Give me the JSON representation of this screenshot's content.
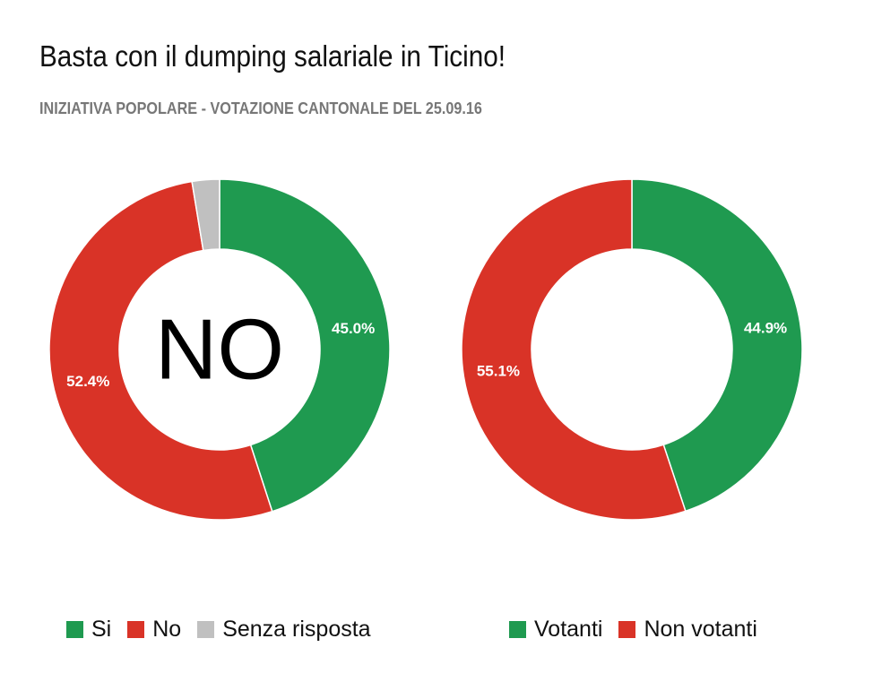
{
  "title": "Basta con il dumping salariale in Ticino!",
  "subtitle": "INIZIATIVA POPOLARE - VOTAZIONE CANTONALE DEL 25.09.16",
  "colors": {
    "si": "#1f9a50",
    "no": "#d93327",
    "senza": "#c0c0c0"
  },
  "chart_data": [
    {
      "type": "pie",
      "center_label": "NO",
      "series": [
        {
          "name": "Si",
          "value": 45.0,
          "label": "45.0%",
          "color": "#1f9a50"
        },
        {
          "name": "No",
          "value": 52.4,
          "label": "52.4%",
          "color": "#d93327"
        },
        {
          "name": "Senza risposta",
          "value": 2.6,
          "label": "",
          "color": "#c0c0c0"
        }
      ],
      "legend": [
        "Si",
        "No",
        "Senza risposta"
      ],
      "legend_position": "bottom"
    },
    {
      "type": "pie",
      "center_label": "",
      "series": [
        {
          "name": "Votanti",
          "value": 44.9,
          "label": "44.9%",
          "color": "#1f9a50"
        },
        {
          "name": "Non votanti",
          "value": 55.1,
          "label": "55.1%",
          "color": "#d93327"
        }
      ],
      "legend": [
        "Votanti",
        "Non votanti"
      ],
      "legend_position": "bottom"
    }
  ]
}
